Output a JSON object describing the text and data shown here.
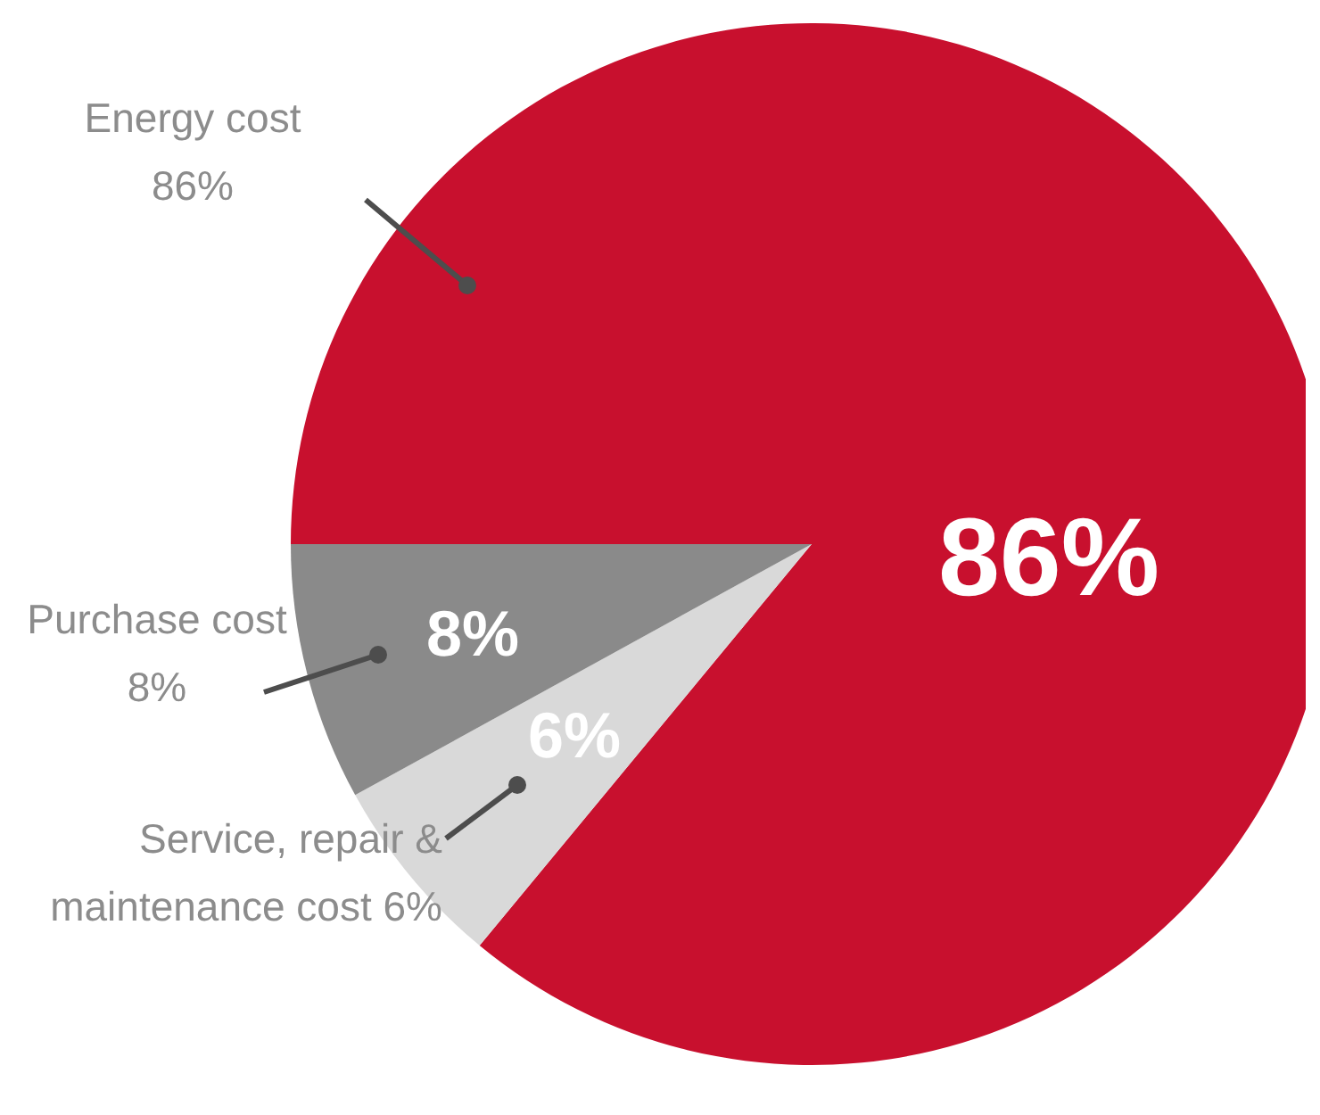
{
  "chart_data": {
    "type": "pie",
    "categories": [
      "Energy cost 86%",
      "Service, repair & maintenance cost 6%",
      "Purchase cost 8%"
    ],
    "values": [
      86,
      6,
      8
    ],
    "value_labels": [
      "86%",
      "6%",
      "8%"
    ],
    "colors": [
      "#c8102e",
      "#d9d9d9",
      "#8a8a8a"
    ]
  }
}
